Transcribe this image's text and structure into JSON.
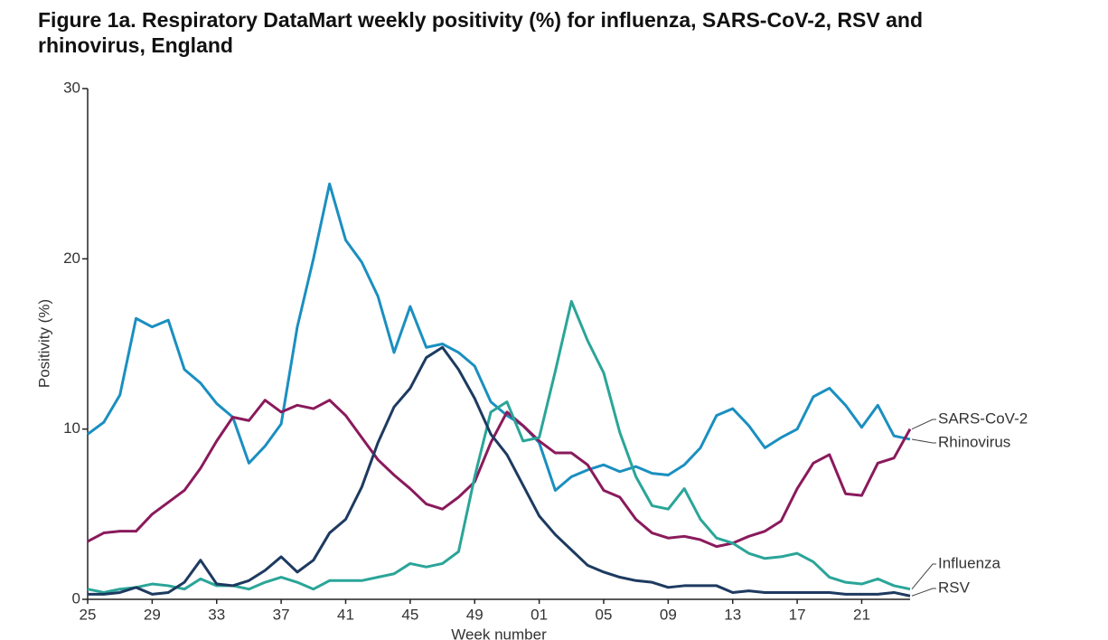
{
  "chart_data": {
    "type": "line",
    "title": "Figure 1a. Respiratory DataMart weekly positivity (%) for influenza, SARS-CoV-2, RSV and rhinovirus, England",
    "xlabel": "Week number",
    "ylabel": "Positivity (%)",
    "categories": [
      "25",
      null,
      null,
      null,
      "29",
      null,
      null,
      null,
      "33",
      null,
      null,
      null,
      "37",
      null,
      null,
      null,
      "41",
      null,
      null,
      null,
      "45",
      null,
      null,
      null,
      "49",
      null,
      null,
      null,
      "01",
      null,
      null,
      null,
      "05",
      null,
      null,
      null,
      "09",
      null,
      null,
      null,
      "13",
      null,
      null,
      null,
      "17",
      null,
      null,
      null,
      "21",
      null,
      null,
      null
    ],
    "ylim": [
      0,
      30
    ],
    "yticks": [
      0,
      10,
      20,
      30
    ],
    "series": [
      {
        "name": "Rhinovirus",
        "color": "#1a8fc0",
        "values": [
          9.7,
          10.4,
          12,
          16.5,
          16,
          16.4,
          13.5,
          12.7,
          11.5,
          10.7,
          8,
          9,
          10.3,
          16,
          20,
          24.4,
          21.1,
          19.8,
          17.8,
          14.5,
          17.2,
          14.8,
          15,
          14.5,
          13.7,
          11.6,
          10.8,
          10.2,
          9.2,
          6.4,
          7.2,
          7.6,
          7.9,
          7.5,
          7.8,
          7.4,
          7.3,
          7.9,
          8.9,
          10.8,
          11.2,
          10.2,
          8.9,
          9.5,
          10,
          11.9,
          12.4,
          11.4,
          10.1,
          11.4,
          9.6,
          9.4
        ]
      },
      {
        "name": "SARS-CoV-2",
        "color": "#8a1a5c",
        "values": [
          3.4,
          3.9,
          4,
          4,
          5,
          5.7,
          6.4,
          7.7,
          9.3,
          10.7,
          10.5,
          11.7,
          11,
          11.4,
          11.2,
          11.7,
          10.8,
          9.5,
          8.2,
          7.3,
          6.5,
          5.6,
          5.3,
          6,
          6.9,
          9.2,
          11,
          10.2,
          9.3,
          8.6,
          8.6,
          7.9,
          6.4,
          6,
          4.7,
          3.9,
          3.6,
          3.7,
          3.5,
          3.1,
          3.3,
          3.7,
          4,
          4.6,
          6.5,
          8,
          8.5,
          6.2,
          6.1,
          8,
          8.3,
          10
        ]
      },
      {
        "name": "Influenza",
        "color": "#2aa598",
        "values": [
          0.6,
          0.4,
          0.6,
          0.7,
          0.9,
          0.8,
          0.6,
          1.2,
          0.8,
          0.8,
          0.6,
          1,
          1.3,
          1,
          0.6,
          1.1,
          1.1,
          1.1,
          1.3,
          1.5,
          2.1,
          1.9,
          2.1,
          2.8,
          7.2,
          11,
          11.6,
          9.3,
          9.5,
          13.4,
          17.5,
          15.2,
          13.3,
          9.8,
          7.2,
          5.5,
          5.3,
          6.5,
          4.7,
          3.6,
          3.3,
          2.7,
          2.4,
          2.5,
          2.7,
          2.2,
          1.3,
          1,
          0.9,
          1.2,
          0.8,
          0.6
        ]
      },
      {
        "name": "RSV",
        "color": "#1d3a60",
        "values": [
          0.3,
          0.3,
          0.4,
          0.7,
          0.3,
          0.4,
          1,
          2.3,
          0.9,
          0.8,
          1.1,
          1.7,
          2.5,
          1.6,
          2.3,
          3.9,
          4.7,
          6.6,
          9.2,
          11.3,
          12.4,
          14.2,
          14.8,
          13.5,
          11.8,
          9.7,
          8.5,
          6.7,
          4.9,
          3.8,
          2.9,
          2,
          1.6,
          1.3,
          1.1,
          1,
          0.7,
          0.8,
          0.8,
          0.8,
          0.4,
          0.5,
          0.4,
          0.4,
          0.4,
          0.4,
          0.4,
          0.3,
          0.3,
          0.3,
          0.4,
          0.2
        ]
      }
    ]
  }
}
